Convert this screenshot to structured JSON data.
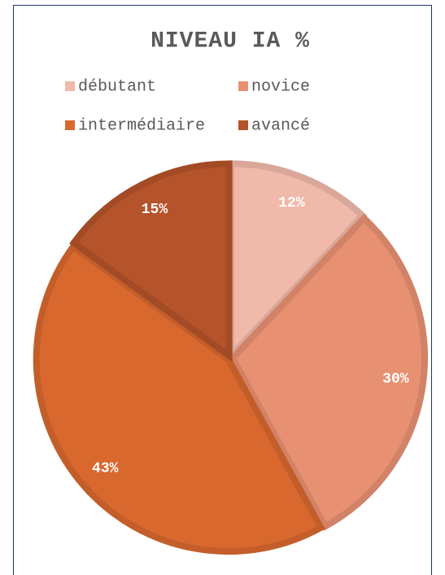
{
  "chart_data": {
    "type": "pie",
    "title": "NIVEAU IA %",
    "categories": [
      "débutant",
      "novice",
      "intermédiaire",
      "avancé"
    ],
    "values": [
      12,
      30,
      43,
      15
    ],
    "value_labels": [
      "12%",
      "30%",
      "43%",
      "15%"
    ],
    "colors": [
      "#f0b9aa",
      "#e89072",
      "#d9682f",
      "#b5532a"
    ],
    "legend": "top"
  }
}
